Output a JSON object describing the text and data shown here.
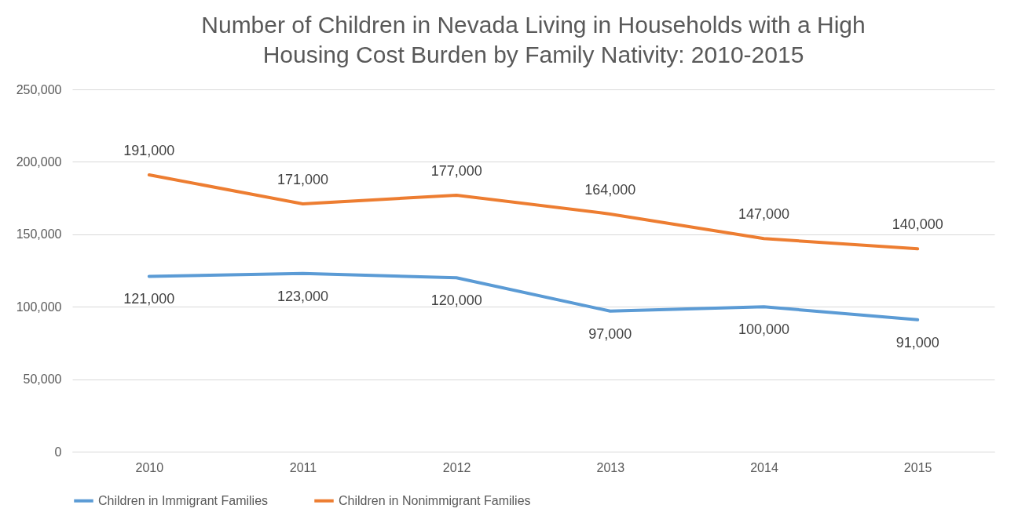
{
  "chart_data": {
    "type": "line",
    "title": "Number of Children in Nevada Living in Households with a High Housing Cost Burden by Family Nativity: 2010-2015",
    "categories": [
      "2010",
      "2011",
      "2012",
      "2013",
      "2014",
      "2015"
    ],
    "series": [
      {
        "name": "Children in Immigrant Families",
        "color": "#5b9bd5",
        "values": [
          121000,
          123000,
          120000,
          97000,
          100000,
          91000
        ],
        "value_labels": [
          "121,000",
          "123,000",
          "120,000",
          "97,000",
          "100,000",
          "91,000"
        ]
      },
      {
        "name": "Children in Nonimmigrant Families",
        "color": "#ed7d31",
        "values": [
          191000,
          171000,
          177000,
          164000,
          147000,
          140000
        ],
        "value_labels": [
          "191,000",
          "171,000",
          "177,000",
          "164,000",
          "147,000",
          "140,000"
        ]
      }
    ],
    "ylim": [
      0,
      250000
    ],
    "yticks": [
      0,
      {
        "value": 50000,
        "label": "50,000"
      },
      {
        "value": 100000,
        "label": "100,000"
      },
      {
        "value": 150000,
        "label": "150,000"
      },
      {
        "value": 200000,
        "label": "200,000"
      },
      {
        "value": 250000,
        "label": "250,000"
      }
    ],
    "grid": "y",
    "legend": "bottom",
    "marker": "none",
    "line_style": "solid"
  }
}
